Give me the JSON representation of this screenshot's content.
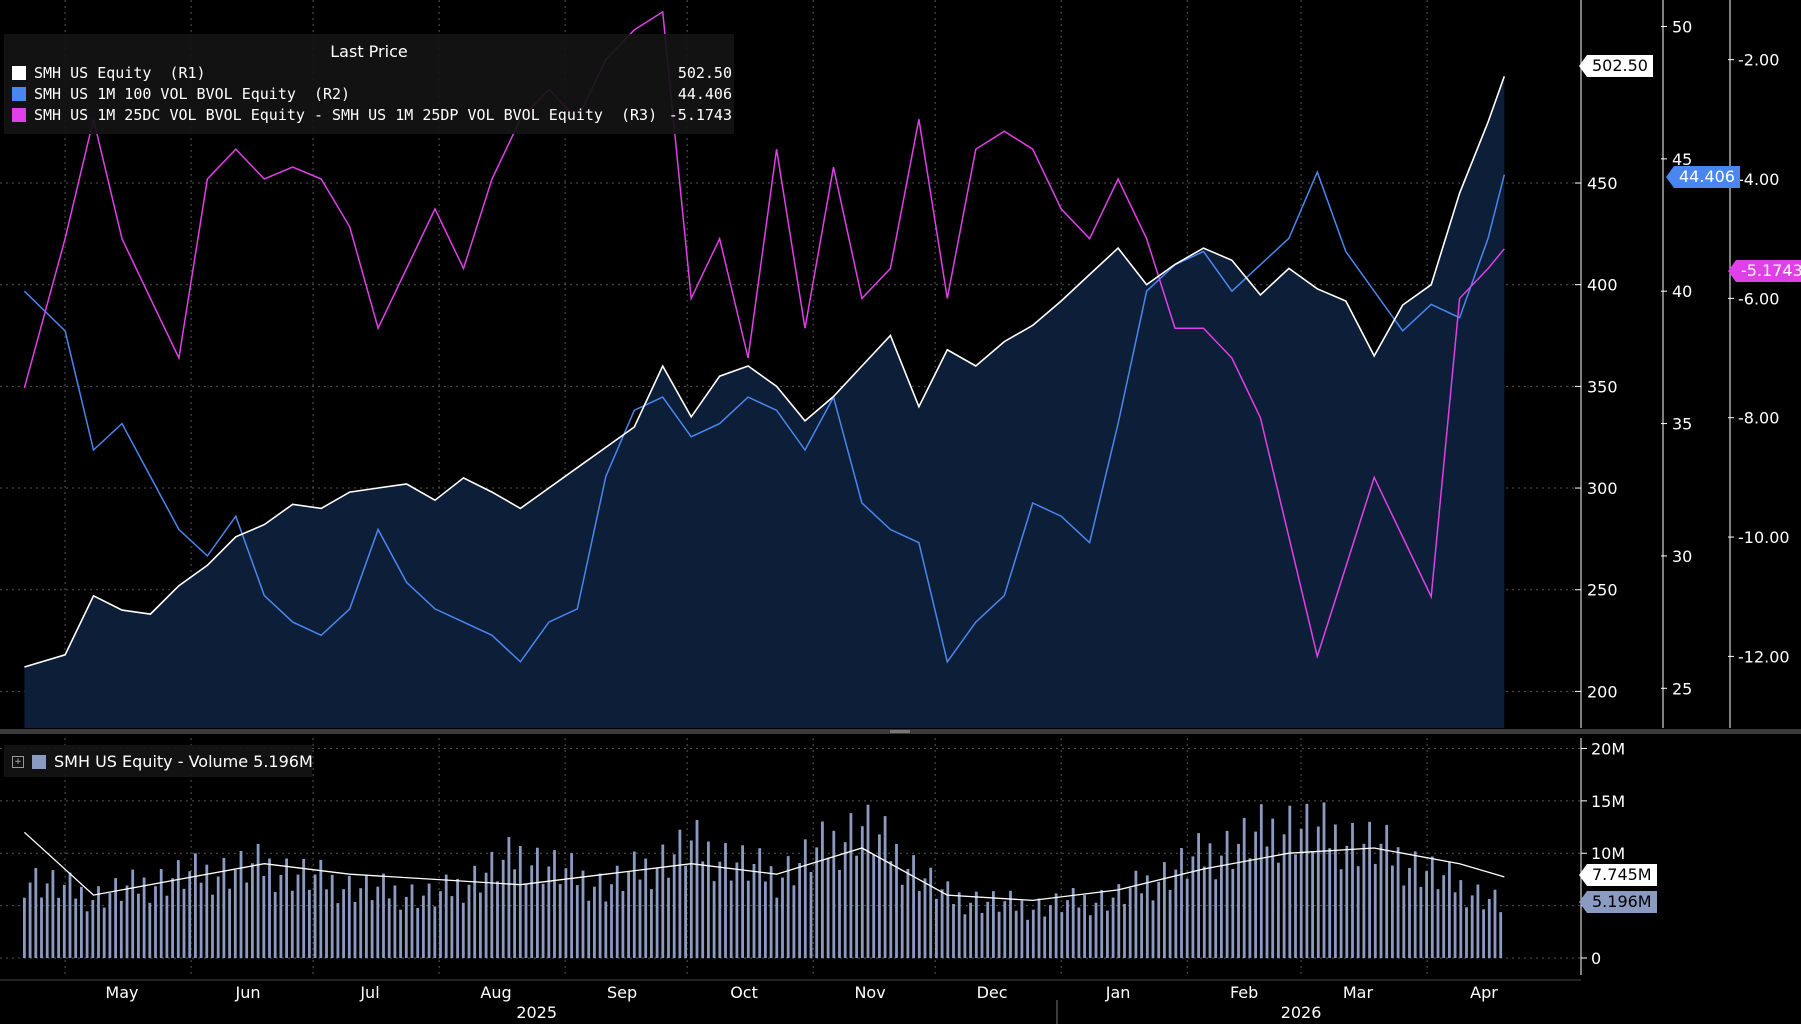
{
  "legend": {
    "title": "Last Price",
    "items": [
      {
        "label": "SMH US Equity  (R1)",
        "value": "502.50",
        "color": "#ffffff"
      },
      {
        "label": "SMH US 1M 100 VOL BVOL Equity  (R2)",
        "value": "44.406",
        "color": "#4a86f0"
      },
      {
        "label": "SMH US 1M 25DC VOL BVOL Equity - SMH US 1M 25DP VOL BVOL Equity  (R3)",
        "value": "-5.1743",
        "color": "#e040e8"
      }
    ]
  },
  "volume_legend": {
    "label": "SMH US Equity - Volume 5.196M",
    "color": "#8b9ac0",
    "icon": "expand-icon"
  },
  "tags": {
    "price": "502.50",
    "vol": "44.406",
    "skew": "-5.1743",
    "vol_ma": "7.745M",
    "volume": "5.196M"
  },
  "chart_data": [
    {
      "type": "area",
      "series": [
        {
          "name": "SMH US Equity  (R1)",
          "axis": "R1",
          "x": [
            "2025-04-21",
            "2025-05-01",
            "2025-05-08",
            "2025-05-15",
            "2025-05-22",
            "2025-05-29",
            "2025-06-05",
            "2025-06-12",
            "2025-06-19",
            "2025-06-26",
            "2025-07-03",
            "2025-07-10",
            "2025-07-17",
            "2025-07-24",
            "2025-07-31",
            "2025-08-07",
            "2025-08-14",
            "2025-08-21",
            "2025-08-28",
            "2025-09-04",
            "2025-09-11",
            "2025-09-18",
            "2025-09-25",
            "2025-10-02",
            "2025-10-09",
            "2025-10-16",
            "2025-10-23",
            "2025-10-30",
            "2025-11-06",
            "2025-11-13",
            "2025-11-20",
            "2025-11-27",
            "2025-12-04",
            "2025-12-11",
            "2025-12-18",
            "2025-12-25",
            "2026-01-01",
            "2026-01-08",
            "2026-01-15",
            "2026-01-22",
            "2026-01-29",
            "2026-02-05",
            "2026-02-12",
            "2026-02-19",
            "2026-02-26",
            "2026-03-05",
            "2026-03-12",
            "2026-03-19",
            "2026-03-26",
            "2026-04-02",
            "2026-04-09",
            "2026-04-16",
            "2026-04-20"
          ],
          "values": [
            212,
            218,
            247,
            240,
            238,
            252,
            262,
            276,
            282,
            292,
            290,
            298,
            300,
            302,
            294,
            305,
            298,
            290,
            300,
            310,
            320,
            330,
            360,
            335,
            355,
            360,
            350,
            333,
            345,
            360,
            375,
            340,
            368,
            360,
            372,
            380,
            392,
            405,
            418,
            400,
            410,
            418,
            412,
            395,
            408,
            398,
            392,
            365,
            390,
            400,
            445,
            480,
            502.5
          ]
        },
        {
          "name": "SMH US 1M 100 VOL BVOL Equity  (R2)",
          "axis": "R2",
          "x": [
            "2025-04-21",
            "2025-05-01",
            "2025-05-08",
            "2025-05-15",
            "2025-05-22",
            "2025-05-29",
            "2025-06-05",
            "2025-06-12",
            "2025-06-19",
            "2025-06-26",
            "2025-07-03",
            "2025-07-10",
            "2025-07-17",
            "2025-07-24",
            "2025-07-31",
            "2025-08-07",
            "2025-08-14",
            "2025-08-21",
            "2025-08-28",
            "2025-09-04",
            "2025-09-11",
            "2025-09-18",
            "2025-09-25",
            "2025-10-02",
            "2025-10-09",
            "2025-10-16",
            "2025-10-23",
            "2025-10-30",
            "2025-11-06",
            "2025-11-13",
            "2025-11-20",
            "2025-11-27",
            "2025-12-04",
            "2025-12-11",
            "2025-12-18",
            "2025-12-25",
            "2026-01-01",
            "2026-01-08",
            "2026-01-15",
            "2026-01-22",
            "2026-01-29",
            "2026-02-05",
            "2026-02-12",
            "2026-02-19",
            "2026-02-26",
            "2026-03-05",
            "2026-03-12",
            "2026-03-19",
            "2026-03-26",
            "2026-04-02",
            "2026-04-09",
            "2026-04-16",
            "2026-04-20"
          ],
          "values": [
            40,
            38.5,
            34,
            35,
            33,
            31,
            30,
            31.5,
            28.5,
            27.5,
            27,
            28,
            31,
            29,
            28,
            27.5,
            27,
            26,
            27.5,
            28,
            33,
            35.5,
            36,
            34.5,
            35,
            36,
            35.5,
            34,
            36,
            32,
            31,
            30.5,
            26,
            27.5,
            28.5,
            32,
            31.5,
            30.5,
            35,
            40,
            41,
            41.5,
            40,
            41,
            42,
            44.5,
            41.5,
            40,
            38.5,
            39.5,
            39,
            42,
            44.4
          ]
        },
        {
          "name": "SMH US 1M 25DC VOL BVOL Equity - SMH US 1M 25DP VOL BVOL Equity  (R3)",
          "axis": "R3",
          "x": [
            "2025-04-21",
            "2025-05-01",
            "2025-05-08",
            "2025-05-15",
            "2025-05-22",
            "2025-05-29",
            "2025-06-05",
            "2025-06-12",
            "2025-06-19",
            "2025-06-26",
            "2025-07-03",
            "2025-07-10",
            "2025-07-17",
            "2025-07-24",
            "2025-07-31",
            "2025-08-07",
            "2025-08-14",
            "2025-08-21",
            "2025-08-28",
            "2025-09-04",
            "2025-09-11",
            "2025-09-18",
            "2025-09-25",
            "2025-10-02",
            "2025-10-09",
            "2025-10-16",
            "2025-10-23",
            "2025-10-30",
            "2025-11-06",
            "2025-11-13",
            "2025-11-20",
            "2025-11-27",
            "2025-12-04",
            "2025-12-11",
            "2025-12-18",
            "2025-12-25",
            "2026-01-01",
            "2026-01-08",
            "2026-01-15",
            "2026-01-22",
            "2026-01-29",
            "2026-02-05",
            "2026-02-12",
            "2026-02-19",
            "2026-02-26",
            "2026-03-05",
            "2026-03-12",
            "2026-03-19",
            "2026-03-26",
            "2026-04-02",
            "2026-04-09",
            "2026-04-16",
            "2026-04-20"
          ],
          "values": [
            -7.5,
            -5,
            -3,
            -5,
            -6,
            -7,
            -4,
            -3.5,
            -4,
            -3.8,
            -4,
            -4.8,
            -6.5,
            -5.5,
            -4.5,
            -5.5,
            -4,
            -3,
            -2.5,
            -3,
            -2,
            -1.5,
            -1.2,
            -6,
            -5,
            -7,
            -3.5,
            -6.5,
            -3.8,
            -6,
            -5.5,
            -3,
            -6,
            -3.5,
            -3.2,
            -3.5,
            -4.5,
            -5,
            -4,
            -5,
            -6.5,
            -6.5,
            -7,
            -8,
            -10,
            -12,
            -10.5,
            -9,
            -10,
            -11,
            -6,
            -5.5,
            -5.17
          ]
        }
      ],
      "axes": {
        "R1": {
          "ticks": [
            200,
            250,
            300,
            350,
            400,
            450
          ],
          "range": [
            182,
            540
          ]
        },
        "R2": {
          "ticks": [
            25,
            30,
            35,
            40,
            45,
            50
          ],
          "range": [
            23.5,
            51
          ]
        },
        "R3": {
          "ticks": [
            "-12.00",
            "-10.00",
            "-8.00",
            "-6.00",
            "-4.00",
            "-2.00"
          ],
          "range": [
            -13.2,
            -1
          ]
        }
      },
      "x_range": [
        "2025-04-15",
        "2026-04-30"
      ],
      "x_ticks": [
        {
          "label": "May",
          "date": "2025-05-15"
        },
        {
          "label": "Jun",
          "date": "2025-06-15"
        },
        {
          "label": "Jul",
          "date": "2025-07-15"
        },
        {
          "label": "Aug",
          "date": "2025-08-15"
        },
        {
          "label": "Sep",
          "date": "2025-09-15"
        },
        {
          "label": "Oct",
          "date": "2025-10-15"
        },
        {
          "label": "Nov",
          "date": "2025-11-15"
        },
        {
          "label": "Dec",
          "date": "2025-12-15"
        },
        {
          "label": "Jan",
          "date": "2026-01-15"
        },
        {
          "label": "Feb",
          "date": "2026-02-15"
        },
        {
          "label": "Mar",
          "date": "2026-03-15"
        },
        {
          "label": "Apr",
          "date": "2026-04-15"
        }
      ],
      "year_labels": [
        {
          "label": "2025",
          "date": "2025-08-25"
        },
        {
          "label": "2026",
          "date": "2026-03-01"
        }
      ],
      "grid": true
    },
    {
      "type": "bar",
      "series": [
        {
          "name": "SMH US Equity - Volume 5.196M",
          "x": [
            "2025-04-21",
            "2025-05-08",
            "2025-05-29",
            "2025-06-19",
            "2025-07-10",
            "2025-07-31",
            "2025-08-21",
            "2025-09-11",
            "2025-10-02",
            "2025-10-23",
            "2025-11-13",
            "2025-12-04",
            "2025-12-25",
            "2026-01-15",
            "2026-02-05",
            "2026-02-26",
            "2026-03-19",
            "2026-04-09",
            "2026-04-20"
          ],
          "values": [
            8,
            6,
            8,
            9,
            7,
            6,
            10,
            7,
            11,
            8,
            13,
            6,
            5,
            6,
            10,
            13,
            11,
            7,
            5.196
          ]
        },
        {
          "name": "Volume moving average",
          "x": [
            "2025-04-21",
            "2025-05-08",
            "2025-05-29",
            "2025-06-19",
            "2025-07-10",
            "2025-07-31",
            "2025-08-21",
            "2025-09-11",
            "2025-10-02",
            "2025-10-23",
            "2025-11-13",
            "2025-12-04",
            "2025-12-25",
            "2026-01-15",
            "2026-02-05",
            "2026-02-26",
            "2026-03-19",
            "2026-04-09",
            "2026-04-20"
          ],
          "values": [
            12,
            6,
            7.5,
            9,
            8,
            7.5,
            7,
            8,
            9,
            8,
            10.5,
            6,
            5.5,
            6.5,
            8.5,
            10,
            10.5,
            9,
            7.745
          ]
        }
      ],
      "axis": {
        "ticks": [
          "0",
          "5M",
          "10M",
          "15M",
          "20M"
        ],
        "tick_values": [
          0,
          5,
          10,
          15,
          20
        ],
        "range": [
          0,
          21
        ]
      }
    }
  ]
}
